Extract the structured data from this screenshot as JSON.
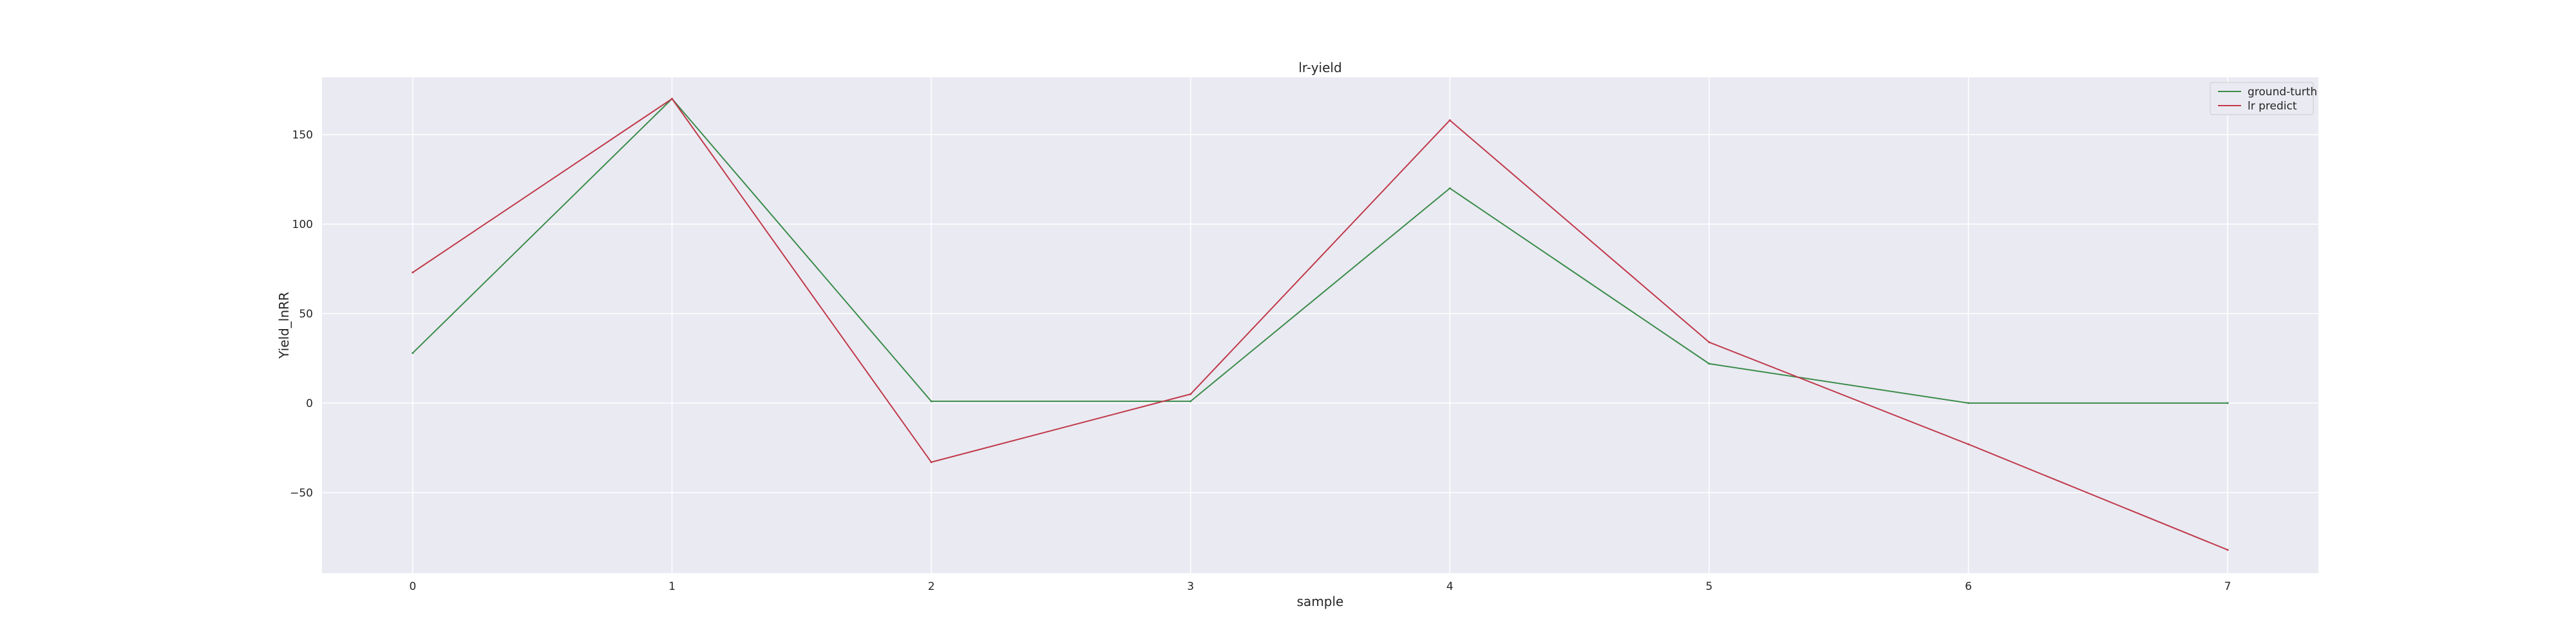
{
  "chart_data": {
    "type": "line",
    "title": "lr-yield",
    "xlabel": "sample",
    "ylabel": "Yield_lnRR",
    "x": [
      0,
      1,
      2,
      3,
      4,
      5,
      6,
      7
    ],
    "xlim": [
      -0.35,
      7.35
    ],
    "ylim": [
      -95,
      182
    ],
    "yticks": [
      -50,
      0,
      50,
      100,
      150
    ],
    "ytick_labels": [
      "−50",
      "0",
      "50",
      "100",
      "150"
    ],
    "grid": true,
    "legend_position": "top-right",
    "series": [
      {
        "name": "ground-turth",
        "color": "#3a8c4a",
        "values": [
          28,
          170,
          1,
          1,
          120,
          22,
          0,
          0
        ]
      },
      {
        "name": "lr predict",
        "color": "#c0394a",
        "values": [
          73,
          170,
          -33,
          5,
          158,
          34,
          -23,
          -82
        ]
      }
    ]
  },
  "colors": {
    "plot_background": "#eaeaf2",
    "grid": "#ffffff"
  }
}
